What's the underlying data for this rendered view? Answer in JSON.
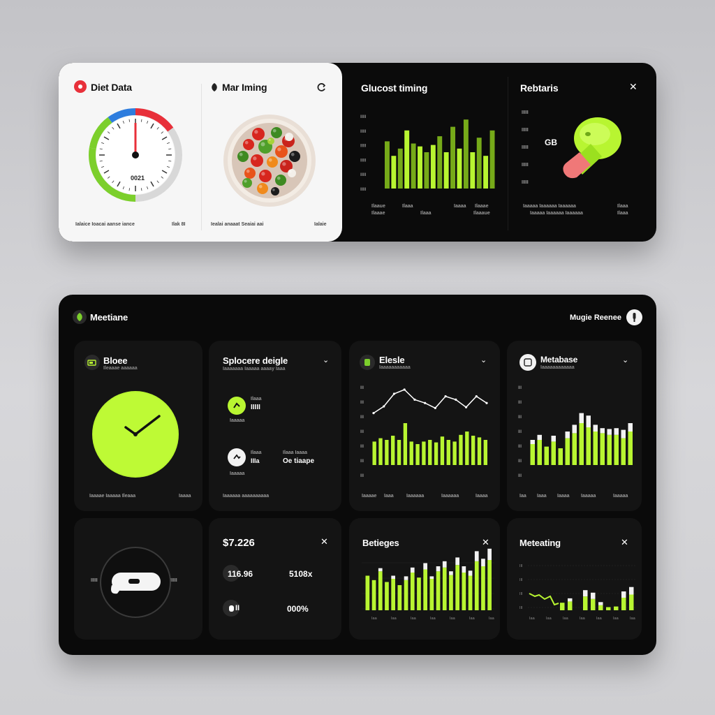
{
  "colors": {
    "accent": "#b8f531",
    "dark": "#0a0a0a",
    "card": "#141414",
    "white": "#f6f6f6",
    "red": "#e8303a",
    "blue": "#2e7dde",
    "green": "#7ccf2c",
    "pink": "#f07878"
  },
  "top": {
    "diet": {
      "title": "Diet Data",
      "icon": "diet-dot-icon",
      "gauge_readout": "0021",
      "footer_left": "Ialaice Ioacai aanse iance",
      "footer_right": "Ilak 8I",
      "gauge_level": 0.62
    },
    "meal": {
      "title": "Mar Iming",
      "icon": "leaf-icon",
      "action_icon": "refresh-icon",
      "footer_left": "Iealai anaaat Seaiai aai",
      "footer_right": "Ialaie"
    },
    "glucose": {
      "title": "Glucost timing",
      "y_ticks": [
        "IIIII",
        "IIIII",
        "IIIII",
        "IIIII",
        "IIIII",
        "IIIII"
      ],
      "x_labels": [
        "Ilaaue",
        "Ilaaa",
        "Iaaaa",
        "Ilaaae"
      ],
      "x_labels2": [
        "Ilaaae",
        "Ilaaa",
        "Ilaaaue"
      ],
      "values": [
        0.65,
        0.45,
        0.55,
        0.8,
        0.62,
        0.58,
        0.5,
        0.6,
        0.72,
        0.5,
        0.85,
        0.55,
        0.95,
        0.5,
        0.7,
        0.45,
        0.8
      ]
    },
    "rebalance": {
      "title": "Rebtaris",
      "close_icon": "close-icon",
      "label": "GB",
      "y_ticks": [
        "IIIII",
        "IIIII",
        "IIIII",
        "IIIII",
        "IIIII"
      ],
      "footer_left": "Iaaaaa Iaaaaaa Iaaaaaa",
      "footer_right": "Ilaaa"
    }
  },
  "bottom": {
    "header": {
      "title": "Meetiane",
      "logo_icon": "leaf-logo-icon",
      "right_label": "Mugie Reenee",
      "avatar_icon": "avatar-icon"
    },
    "blose": {
      "title": "Bloee",
      "icon": "battery-icon",
      "sub": "Ileaaae aaaaaa",
      "footer_left": "Iaaaae Iaaaaa Ileaaa",
      "footer_right": "Iaaaa",
      "dial_icon": "clock-hand-icon"
    },
    "splits": {
      "title": "Splocere deigle",
      "sub": "Iaaaaaaa Iaaaaa aaaay Iaaa",
      "item1_label": "Ilaaa",
      "item1_value": "IIIII",
      "item1_sub": "Iaaaaa",
      "item2_label": "Ilaaa",
      "item2_value": "IIIa",
      "item2_right_label": "Ilaaa Iaaaa",
      "item2_right_value": "Oe tiaape",
      "item2_sub": "Iaaaaa",
      "footer": "Iaaaaaa aaaaaaaaaa"
    },
    "elesle": {
      "title": "Elesle",
      "sub": "Iaaaaaaaaaaa",
      "y_ticks": [
        "III",
        "III",
        "III",
        "III",
        "III",
        "III",
        "III"
      ],
      "x_labels": [
        "Iaaaae",
        "Iaaa",
        "Iaaaaaa",
        "Iaaaaaa",
        "Iaaaa"
      ],
      "bars": [
        0.28,
        0.32,
        0.3,
        0.35,
        0.3,
        0.5,
        0.28,
        0.25,
        0.28,
        0.3,
        0.27,
        0.34,
        0.3,
        0.28,
        0.36,
        0.4,
        0.35,
        0.33,
        0.3
      ],
      "line": [
        0.62,
        0.7,
        0.85,
        0.9,
        0.78,
        0.74,
        0.68,
        0.82,
        0.78,
        0.69,
        0.82,
        0.74
      ]
    },
    "metabase": {
      "title": "Metabase",
      "sub": "Iaaaaaaaaaaaa",
      "y_ticks": [
        "III",
        "III",
        "III",
        "III",
        "III",
        "III",
        "III"
      ],
      "x_labels": [
        "Iaa",
        "Iaaa",
        "Iaaaa",
        "Iaaaaa",
        "Iaaaaa"
      ],
      "bars": [
        0.25,
        0.3,
        0.22,
        0.28,
        0.2,
        0.32,
        0.38,
        0.5,
        0.45,
        0.4,
        0.38,
        0.36,
        0.36,
        0.32,
        0.4
      ],
      "caps": [
        0.05,
        0.06,
        0.0,
        0.07,
        0.0,
        0.08,
        0.1,
        0.12,
        0.14,
        0.08,
        0.06,
        0.07,
        0.08,
        0.1,
        0.1
      ]
    },
    "dial": {
      "y_label_left": "IIIII",
      "y_label_right": "IIIII",
      "device_icon": "controller-icon"
    },
    "values": {
      "title": "$7.226",
      "close_icon": "close-icon",
      "row1_left": "116.96",
      "row1_right": "5108x",
      "row2_left": "II",
      "row2_right": "000%"
    },
    "betieges": {
      "title": "Betieges",
      "close_icon": "close-icon",
      "bars": [
        0.55,
        0.48,
        0.62,
        0.45,
        0.5,
        0.4,
        0.48,
        0.6,
        0.52,
        0.65,
        0.5,
        0.62,
        0.68,
        0.56,
        0.72,
        0.6,
        0.55,
        0.78,
        0.7,
        0.8
      ],
      "caps": [
        0.0,
        0.0,
        0.05,
        0.0,
        0.05,
        0.0,
        0.06,
        0.08,
        0.0,
        0.1,
        0.04,
        0.08,
        0.1,
        0.06,
        0.12,
        0.1,
        0.08,
        0.16,
        0.12,
        0.18
      ]
    },
    "meteating": {
      "title": "Meteating",
      "close_icon": "close-icon",
      "bars": [
        0.0,
        0.0,
        0.0,
        0.0,
        0.12,
        0.14,
        0.0,
        0.22,
        0.18,
        0.08,
        0.05,
        0.06,
        0.2,
        0.25
      ],
      "caps": [
        0.0,
        0.0,
        0.0,
        0.0,
        0.0,
        0.05,
        0.0,
        0.1,
        0.1,
        0.05,
        0.0,
        0.0,
        0.1,
        0.12
      ]
    }
  }
}
